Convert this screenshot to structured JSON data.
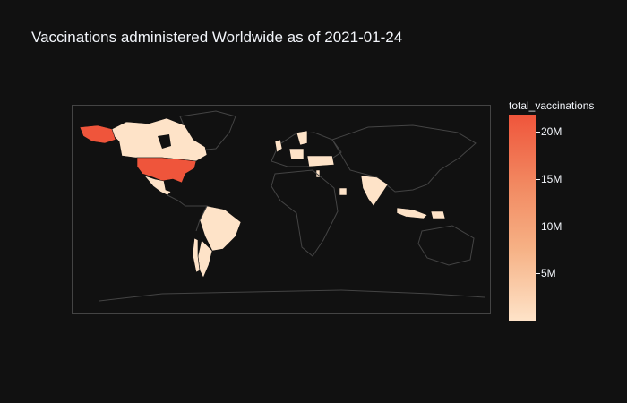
{
  "title": "Vaccinations administered Worldwide as of 2021-01-24",
  "colorbar": {
    "title": "total_vaccinations",
    "min": 0,
    "max": 21850000,
    "ticks": [
      {
        "value": 5000000,
        "label": "5M"
      },
      {
        "value": 10000000,
        "label": "10M"
      },
      {
        "value": 15000000,
        "label": "15M"
      },
      {
        "value": 20000000,
        "label": "20M"
      }
    ],
    "colorscale": [
      "#fee3c8",
      "#f6b185",
      "#f28a62",
      "#ef553b"
    ]
  },
  "colors": {
    "background": "#111111",
    "land_border": "#444444",
    "low_fill": "#fee3c8",
    "high_fill": "#ef553b"
  },
  "chart_data": {
    "type": "choropleth",
    "projection": "equirectangular",
    "locations": [
      {
        "name": "United States",
        "total_vaccinations": 21850000
      },
      {
        "name": "Canada",
        "total_vaccinations": 800000
      },
      {
        "name": "Mexico",
        "total_vaccinations": 500000
      },
      {
        "name": "Brazil",
        "total_vaccinations": 200000
      },
      {
        "name": "Argentina",
        "total_vaccinations": 200000
      },
      {
        "name": "Chile",
        "total_vaccinations": 100000
      },
      {
        "name": "India",
        "total_vaccinations": 1600000
      },
      {
        "name": "United Kingdom",
        "total_vaccinations": 6500000
      },
      {
        "name": "Israel",
        "total_vaccinations": 4000000
      },
      {
        "name": "Indonesia",
        "total_vaccinations": 200000
      }
    ]
  }
}
